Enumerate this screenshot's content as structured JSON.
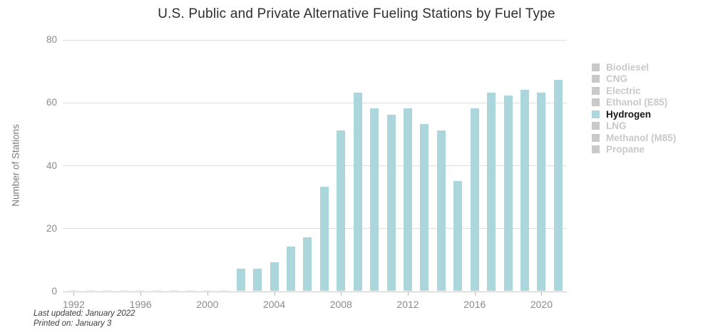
{
  "chart_data": {
    "type": "bar",
    "title": "U.S. Public and Private Alternative Fueling Stations by Fuel Type",
    "ylabel": "Number of Stations",
    "xlabel": "",
    "series_name": "Hydrogen",
    "x": [
      1992,
      1993,
      1994,
      1995,
      1996,
      1997,
      1998,
      1999,
      2000,
      2001,
      2002,
      2003,
      2004,
      2005,
      2006,
      2007,
      2008,
      2009,
      2010,
      2011,
      2012,
      2013,
      2014,
      2015,
      2016,
      2017,
      2018,
      2019,
      2020,
      2021
    ],
    "values": [
      0,
      0,
      0,
      0,
      0,
      0,
      0,
      0,
      0,
      0,
      7,
      7,
      9,
      14,
      17,
      33,
      51,
      63,
      58,
      56,
      58,
      53,
      51,
      35,
      58,
      63,
      62,
      64,
      63,
      67
    ],
    "ylim": [
      0,
      80
    ],
    "yticks": [
      0,
      20,
      40,
      60,
      80
    ],
    "xticks": [
      1992,
      1996,
      2000,
      2004,
      2008,
      2012,
      2016,
      2020
    ],
    "grid": true,
    "legend_position": "right",
    "bar_color": "#abd6dc"
  },
  "legend": {
    "items": [
      {
        "label": "Biodiesel",
        "color": "#c9c9c9",
        "active": false
      },
      {
        "label": "CNG",
        "color": "#c9c9c9",
        "active": false
      },
      {
        "label": "Electric",
        "color": "#c9c9c9",
        "active": false
      },
      {
        "label": "Ethanol (E85)",
        "color": "#c9c9c9",
        "active": false
      },
      {
        "label": "Hydrogen",
        "color": "#abd6dc",
        "active": true
      },
      {
        "label": "LNG",
        "color": "#c9c9c9",
        "active": false
      },
      {
        "label": "Methanol (M85)",
        "color": "#c9c9c9",
        "active": false
      },
      {
        "label": "Propane",
        "color": "#c9c9c9",
        "active": false
      }
    ],
    "active_text_color": "#161616",
    "inactive_text_color": "#c9c9c9"
  },
  "footer": {
    "last_updated": "Last updated: January 2022",
    "printed_on": "Printed on: January 3"
  }
}
